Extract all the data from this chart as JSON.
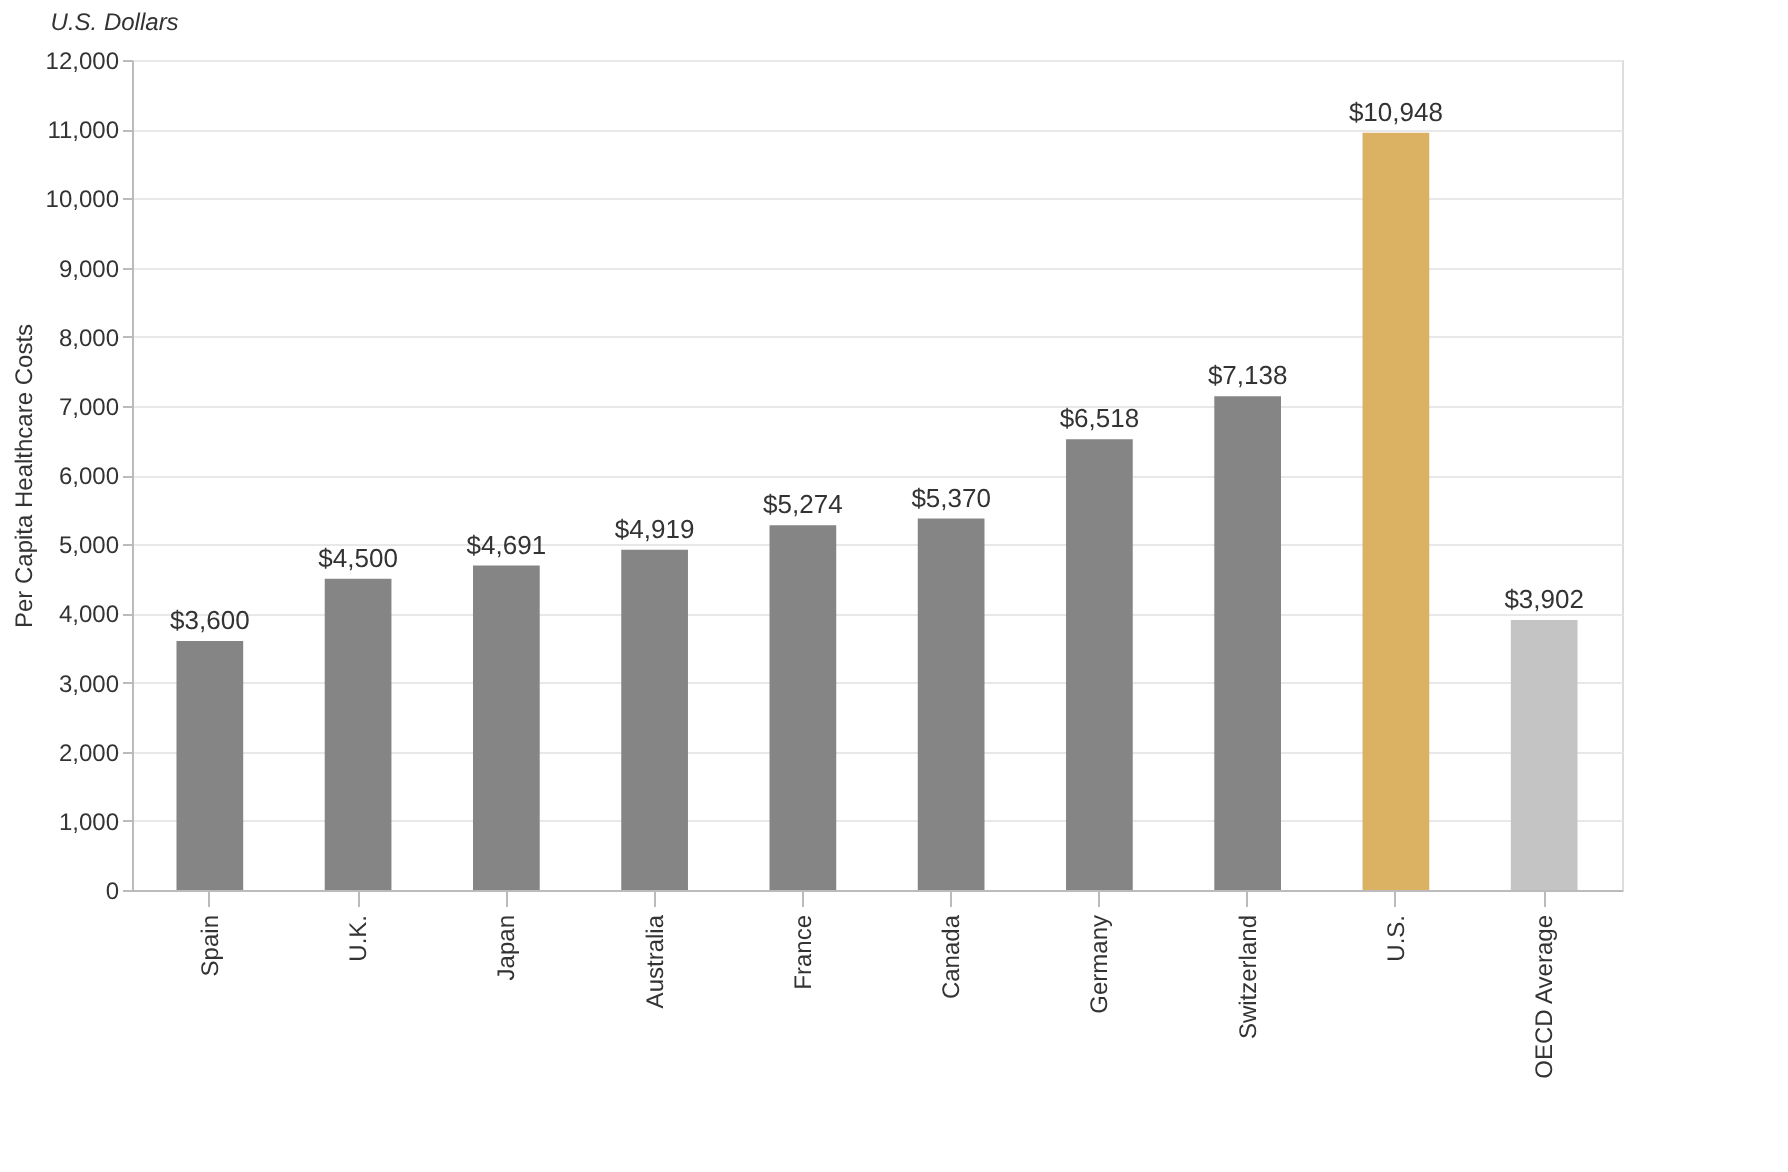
{
  "chart_data": {
    "type": "bar",
    "title": "U.S. Dollars",
    "ylabel": "Per Capita Healthcare Costs",
    "categories": [
      "Spain",
      "U.K.",
      "Japan",
      "Australia",
      "France",
      "Canada",
      "Germany",
      "Switzerland",
      "U.S.",
      "OECD Average"
    ],
    "values": [
      3600,
      4500,
      4691,
      4919,
      5274,
      5370,
      6518,
      7138,
      10948,
      3902
    ],
    "colors": [
      "#858585",
      "#858585",
      "#858585",
      "#858585",
      "#858585",
      "#858585",
      "#858585",
      "#858585",
      "#dbb163",
      "#c4c4c4"
    ],
    "value_labels": [
      "$3,600",
      "$4,500",
      "$4,691",
      "$4,919",
      "$5,274",
      "$5,370",
      "$6,518",
      "$7,138",
      "$10,948",
      "$3,902"
    ],
    "ylim": [
      0,
      12000
    ],
    "yticks": [
      0,
      {
        "value": 1000,
        "label": "1,000"
      },
      {
        "value": 2000,
        "label": "2,000"
      },
      {
        "value": 3000,
        "label": "3,000"
      },
      {
        "value": 4000,
        "label": "4,000"
      },
      {
        "value": 5000,
        "label": "5,000"
      },
      {
        "value": 6000,
        "label": "6,000"
      },
      {
        "value": 7000,
        "label": "7,000"
      },
      {
        "value": 8000,
        "label": "8,000"
      },
      {
        "value": 9000,
        "label": "9,000"
      },
      {
        "value": 10000,
        "label": "10,000"
      },
      {
        "value": 11000,
        "label": "11,000"
      },
      {
        "value": 12000,
        "label": "12,000"
      }
    ],
    "grid": "y"
  }
}
